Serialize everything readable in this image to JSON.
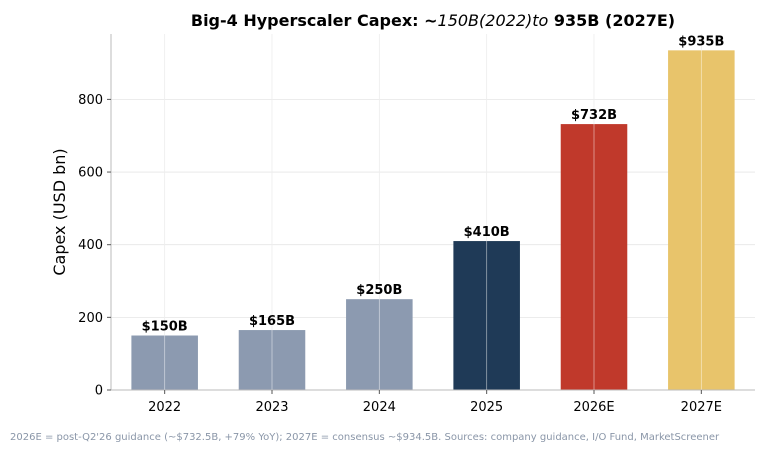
{
  "chart_data": {
    "type": "bar",
    "title": {
      "bold_prefix": "Big-4 Hyperscaler Capex: ~",
      "math_segment": "150B(2022)to",
      "bold_suffix": " 935B (2027E)"
    },
    "xlabel": "",
    "ylabel": "Capex (USD bn)",
    "categories": [
      "2022",
      "2023",
      "2024",
      "2025",
      "2026E",
      "2027E"
    ],
    "values": [
      150,
      165,
      250,
      410,
      732,
      935
    ],
    "data_labels": [
      "$150B",
      "$165B",
      "$250B",
      "$410B",
      "$732B",
      "$935B"
    ],
    "colors": [
      "#8c9ab0",
      "#8c9ab0",
      "#8c9ab0",
      "#1f3a57",
      "#c0392b",
      "#e8c46b"
    ],
    "ylim": [
      0,
      980
    ],
    "yticks": [
      0,
      200,
      400,
      600,
      800
    ],
    "grid": true,
    "footnote": "2026E = post-Q2'26 guidance (~$732.5B, +79% YoY); 2027E = consensus ~$934.5B. Sources: company guidance, I/O Fund, MarketScreener"
  }
}
